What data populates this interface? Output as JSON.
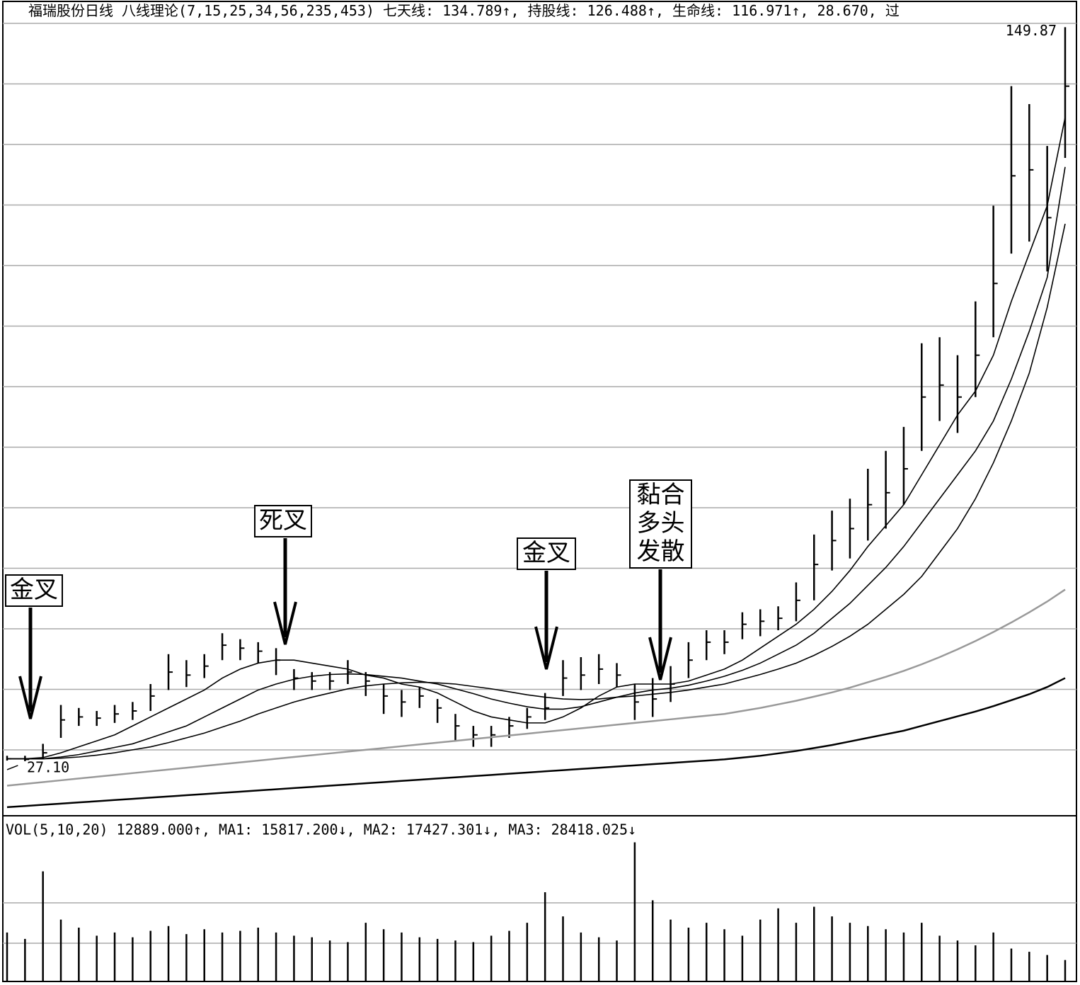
{
  "chart_data": {
    "type": "ohlc",
    "header": [
      "福瑞股份日线",
      "八线理论(7,15,25,34,56,235,453)",
      "七天线: 134.789↑,",
      "持股线: 126.488↑,",
      "生命线: 116.971↑,",
      "28.670, 过"
    ],
    "ylim": [
      18.8,
      150.5
    ],
    "close": [
      27.5,
      27.4,
      28.5,
      34,
      34.5,
      34.3,
      35,
      35.5,
      38,
      42,
      41.5,
      43,
      46.5,
      46,
      45.5,
      44,
      41,
      40.5,
      40.5,
      42,
      40.5,
      38,
      37,
      38,
      36,
      33,
      31.5,
      31.5,
      33,
      34.5,
      36,
      41,
      41.5,
      42.5,
      41.5,
      37,
      37.5,
      40,
      44,
      47,
      47,
      50,
      50.5,
      51,
      54,
      60,
      64,
      66,
      70,
      72,
      76,
      88,
      90,
      88,
      95,
      107,
      125,
      126,
      118,
      140
    ],
    "high": [
      28,
      28,
      30,
      36.5,
      36,
      35.5,
      36.5,
      37,
      40,
      45,
      44,
      45,
      48.5,
      47.5,
      47,
      46,
      42.5,
      42,
      42,
      44,
      42,
      40,
      39,
      39.5,
      37.5,
      35,
      33,
      33,
      34.5,
      36,
      38.5,
      44,
      44.5,
      45,
      43.5,
      40,
      41,
      43,
      47,
      49,
      49,
      52,
      52.5,
      53,
      57,
      65,
      69,
      71,
      76,
      79,
      83,
      97,
      98,
      95,
      104,
      120,
      140,
      137,
      130,
      149.87
    ],
    "low": [
      27.2,
      27.1,
      27.5,
      31,
      33,
      33,
      33.5,
      34,
      35.5,
      39,
      39.5,
      41,
      44,
      44,
      43.5,
      41.5,
      39,
      39,
      39,
      40,
      38,
      35,
      34.5,
      36,
      33.5,
      30.5,
      29.5,
      29.5,
      31,
      32.5,
      34,
      38,
      39,
      40,
      39.5,
      34,
      34.5,
      37,
      41,
      44,
      45,
      47.5,
      48,
      49,
      50.5,
      54,
      59,
      61,
      64,
      66,
      70,
      79,
      84,
      82,
      88,
      98,
      112,
      114,
      109,
      128
    ],
    "series": [
      {
        "color": "#000000",
        "values": [
          27.5,
          27.5,
          27.7,
          28.5,
          29.5,
          30.5,
          31.5,
          33,
          34.5,
          36,
          37.5,
          39,
          41,
          42.5,
          43.5,
          44,
          44,
          43.5,
          43,
          42.5,
          41.5,
          41,
          40,
          39.5,
          38.5,
          37,
          35.5,
          34.5,
          34,
          33.5,
          33.5,
          34.5,
          36,
          38,
          39.5,
          40,
          40,
          40,
          40.5,
          41.5,
          42.5,
          44,
          46,
          48,
          50,
          52.5,
          55.5,
          59,
          63,
          66.5,
          70,
          75,
          80,
          85,
          89,
          95,
          104,
          112,
          120,
          134.789
        ]
      },
      {
        "color": "#000000",
        "values": [
          27.5,
          27.5,
          27.5,
          27.8,
          28.2,
          28.8,
          29.4,
          30,
          31,
          32,
          33,
          34.5,
          36,
          37.5,
          39,
          40,
          40.8,
          41.3,
          41.6,
          41.7,
          41.6,
          41.3,
          41,
          40.5,
          40,
          39.2,
          38.4,
          37.5,
          36.8,
          36.2,
          35.8,
          35.8,
          36.2,
          37,
          37.8,
          38.5,
          39,
          39.3,
          39.8,
          40.5,
          41.3,
          42.3,
          43.5,
          45,
          46.5,
          48.5,
          51,
          53.5,
          56.5,
          59.5,
          63,
          67,
          71,
          75,
          79,
          84,
          91,
          99,
          108,
          126.488
        ]
      },
      {
        "color": "#000000",
        "values": [
          27.5,
          27.5,
          27.5,
          27.6,
          27.8,
          28.1,
          28.5,
          29,
          29.5,
          30.2,
          31,
          31.8,
          32.8,
          33.8,
          35,
          36,
          37,
          37.8,
          38.5,
          39.2,
          39.7,
          40,
          40.2,
          40.3,
          40.2,
          40,
          39.6,
          39.2,
          38.7,
          38.2,
          37.8,
          37.5,
          37.4,
          37.5,
          37.8,
          38,
          38.3,
          38.6,
          39,
          39.5,
          40,
          40.8,
          41.6,
          42.5,
          43.5,
          44.8,
          46.3,
          48,
          50,
          52.5,
          55,
          58,
          62,
          66,
          71,
          77,
          84,
          92,
          103,
          116.971
        ]
      },
      {
        "color": "#999999",
        "values": [
          23,
          23.3,
          23.6,
          23.9,
          24.2,
          24.5,
          24.8,
          25.1,
          25.4,
          25.7,
          26,
          26.3,
          26.6,
          26.9,
          27.2,
          27.5,
          27.8,
          28.1,
          28.4,
          28.7,
          29,
          29.3,
          29.6,
          29.9,
          30.2,
          30.5,
          30.8,
          31.1,
          31.4,
          31.7,
          32,
          32.3,
          32.6,
          32.9,
          33.2,
          33.5,
          33.8,
          34.1,
          34.4,
          34.7,
          35,
          35.5,
          36,
          36.6,
          37.2,
          37.9,
          38.6,
          39.4,
          40.3,
          41.2,
          42.2,
          43.3,
          44.5,
          45.8,
          47.2,
          48.7,
          50.3,
          52,
          53.8,
          55.8
        ]
      },
      {
        "color": "#000000",
        "values": [
          19.4,
          19.6,
          19.8,
          20,
          20.2,
          20.4,
          20.6,
          20.8,
          21,
          21.2,
          21.4,
          21.6,
          21.8,
          22,
          22.2,
          22.4,
          22.6,
          22.8,
          23,
          23.2,
          23.4,
          23.6,
          23.8,
          24,
          24.2,
          24.4,
          24.6,
          24.8,
          25,
          25.2,
          25.4,
          25.6,
          25.8,
          26,
          26.2,
          26.4,
          26.6,
          26.8,
          27,
          27.2,
          27.4,
          27.7,
          28,
          28.4,
          28.8,
          29.3,
          29.8,
          30.4,
          31,
          31.6,
          32.2,
          33,
          33.8,
          34.6,
          35.4,
          36.3,
          37.3,
          38.3,
          39.5,
          41
        ]
      }
    ],
    "high_label": 149.87,
    "low_label": {
      "value": 27.1,
      "label": "27.10"
    },
    "annotations": [
      {
        "lines": [
          "金叉"
        ]
      },
      {
        "lines": [
          "死叉"
        ]
      },
      {
        "lines": [
          "金叉"
        ]
      },
      {
        "lines": [
          "黏合",
          "多头",
          "发散"
        ]
      }
    ],
    "volume": {
      "header": "VOL(5,10,20) 12889.000↑, MA1: 15817.200↓, MA2: 17427.301↓, MA3: 28418.025↓",
      "ylim": [
        0,
        88000
      ],
      "values": [
        30000,
        26000,
        68000,
        38000,
        33000,
        28000,
        30000,
        27000,
        31000,
        34000,
        29000,
        32000,
        30000,
        31000,
        33000,
        30000,
        28000,
        27000,
        25000,
        24000,
        36000,
        32000,
        30000,
        27000,
        26000,
        25000,
        24000,
        28000,
        31000,
        36000,
        55000,
        40000,
        30000,
        27000,
        25000,
        86000,
        50000,
        38000,
        33000,
        36000,
        32000,
        28000,
        38000,
        45000,
        36000,
        46000,
        40000,
        36000,
        34000,
        32000,
        30000,
        36000,
        28000,
        25000,
        22000,
        30000,
        20000,
        18000,
        16000,
        12889
      ]
    }
  }
}
